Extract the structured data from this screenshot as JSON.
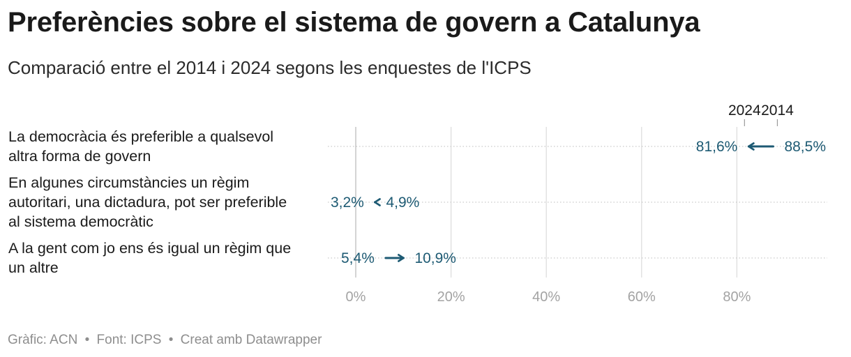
{
  "title": "Preferències sobre el sistema de govern a Catalunya",
  "subtitle": "Comparació entre el 2014 i 2024 segons les enquestes de l'ICPS",
  "footer": {
    "graphic": "Gràfic: ACN",
    "source": "Font: ICPS",
    "tool": "Creat amb Datawrapper",
    "separator": "•"
  },
  "colors": {
    "arrow": "#1d5a73",
    "grid": "#dedede",
    "zero_line": "#bdbdbd",
    "dot_line": "#c9c9c9",
    "tick_text": "#a3a3a3"
  },
  "chart_data": {
    "type": "arrow",
    "xlim": [
      0,
      100
    ],
    "xticks": [
      0,
      20,
      40,
      60,
      80
    ],
    "xtick_labels": [
      "0%",
      "20%",
      "40%",
      "60%",
      "80%"
    ],
    "legend": [
      {
        "label": "2024",
        "value": 81.6
      },
      {
        "label": "2014",
        "value": 88.5
      }
    ],
    "rows": [
      {
        "label_lines": [
          "La democràcia és preferible a qualsevol",
          "altra forma de govern"
        ],
        "from_2014": 88.5,
        "to_2024": 81.6,
        "from_label": "88,5%",
        "to_label": "81,6%"
      },
      {
        "label_lines": [
          "En algunes circumstàncies un règim",
          "autoritari, una dictadura, pot ser preferible",
          "al sistema democràtic"
        ],
        "from_2014": 3.2,
        "to_2024": 4.9,
        "from_label": "3,2%",
        "to_label": "4,9%"
      },
      {
        "label_lines": [
          "A la gent com jo ens és igual un règim que",
          "un altre"
        ],
        "from_2014": 5.4,
        "to_2024": 10.9,
        "from_label": "5,4%",
        "to_label": "10,9%"
      }
    ]
  }
}
